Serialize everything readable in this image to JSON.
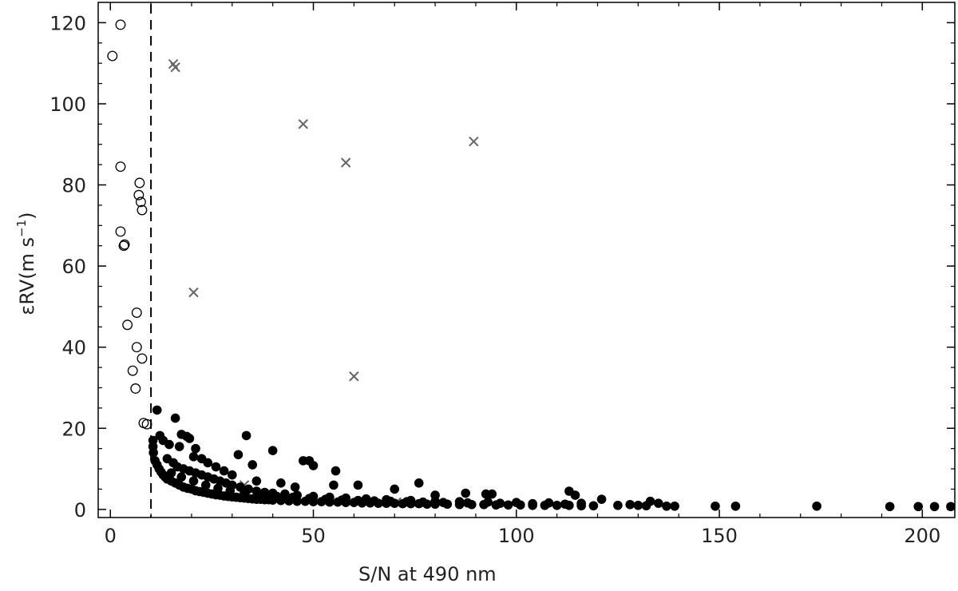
{
  "chart_data": {
    "type": "scatter",
    "title": "",
    "xlabel": "S/N at 490 nm",
    "ylabel": "εRV(m s⁻¹)",
    "ylabel_parts": {
      "base": "εRV(m s",
      "sup": "−1",
      "close": ")"
    },
    "xlim": [
      -3,
      208
    ],
    "ylim": [
      -2,
      125
    ],
    "xticks": [
      0,
      50,
      100,
      150,
      200
    ],
    "yticks": [
      0,
      20,
      40,
      60,
      80,
      100,
      120
    ],
    "xtick_labels": [
      "0",
      "50",
      "100",
      "150",
      "200"
    ],
    "ytick_labels": [
      "0",
      "20",
      "40",
      "60",
      "80",
      "100",
      "120"
    ],
    "grid": false,
    "vline": {
      "x": 10,
      "style": "dashed",
      "color": "#000000"
    },
    "series": [
      {
        "marker": "open-circle",
        "color": "#000000",
        "points": [
          [
            2.5,
            119.5
          ],
          [
            0.5,
            111.8
          ],
          [
            2.5,
            84.5
          ],
          [
            7.2,
            80.5
          ],
          [
            7.0,
            77.5
          ],
          [
            7.5,
            75.8
          ],
          [
            7.8,
            73.8
          ],
          [
            2.5,
            68.5
          ],
          [
            3.5,
            65.3
          ],
          [
            3.3,
            65.0
          ],
          [
            6.5,
            48.5
          ],
          [
            4.2,
            45.5
          ],
          [
            6.5,
            40.0
          ],
          [
            7.8,
            37.2
          ],
          [
            5.5,
            34.2
          ],
          [
            6.2,
            29.8
          ],
          [
            8.2,
            21.3
          ],
          [
            9.0,
            21.0
          ]
        ]
      },
      {
        "marker": "cross",
        "color": "#666666",
        "points": [
          [
            15.5,
            109.8
          ],
          [
            16.0,
            109.0
          ],
          [
            47.5,
            95.0
          ],
          [
            89.5,
            90.7
          ],
          [
            58.0,
            85.5
          ],
          [
            20.5,
            53.5
          ],
          [
            60.0,
            32.8
          ],
          [
            33.0,
            6.0
          ],
          [
            70.5,
            1.8
          ]
        ]
      },
      {
        "marker": "filled-circle",
        "color": "#000000",
        "points": [
          [
            11.5,
            24.5
          ],
          [
            16.0,
            22.5
          ],
          [
            10.5,
            17.0
          ],
          [
            10.5,
            15.5
          ],
          [
            10.6,
            14.0
          ],
          [
            12.2,
            18.2
          ],
          [
            13.0,
            17.0
          ],
          [
            14.5,
            16.0
          ],
          [
            17.5,
            18.5
          ],
          [
            18.8,
            18.0
          ],
          [
            19.5,
            17.5
          ],
          [
            17.0,
            15.5
          ],
          [
            21.0,
            15.0
          ],
          [
            20.5,
            13.0
          ],
          [
            22.5,
            12.5
          ],
          [
            24.0,
            11.5
          ],
          [
            26.0,
            10.5
          ],
          [
            28.0,
            9.5
          ],
          [
            30.0,
            8.5
          ],
          [
            31.5,
            13.5
          ],
          [
            33.5,
            18.2
          ],
          [
            35.0,
            11.0
          ],
          [
            40.0,
            14.5
          ],
          [
            47.5,
            12.0
          ],
          [
            49.0,
            12.0
          ],
          [
            50.0,
            10.8
          ],
          [
            55.5,
            9.5
          ],
          [
            61.0,
            6.0
          ],
          [
            36.0,
            7.0
          ],
          [
            42.0,
            6.5
          ],
          [
            45.5,
            5.5
          ],
          [
            55.0,
            6.0
          ],
          [
            76.0,
            6.5
          ],
          [
            87.5,
            4.0
          ],
          [
            92.5,
            3.8
          ],
          [
            94.0,
            3.8
          ],
          [
            113.0,
            4.5
          ],
          [
            114.5,
            3.5
          ],
          [
            70.0,
            5.0
          ],
          [
            80.0,
            3.5
          ],
          [
            11.0,
            12.0
          ],
          [
            11.5,
            11.0
          ],
          [
            12.0,
            10.0
          ],
          [
            12.5,
            9.2
          ],
          [
            13.0,
            8.5
          ],
          [
            13.5,
            8.0
          ],
          [
            14.0,
            7.5
          ],
          [
            15.0,
            7.0
          ],
          [
            16.0,
            6.5
          ],
          [
            17.0,
            6.0
          ],
          [
            18.0,
            5.5
          ],
          [
            19.0,
            5.2
          ],
          [
            20.0,
            5.0
          ],
          [
            21.0,
            4.6
          ],
          [
            22.0,
            4.4
          ],
          [
            23.0,
            4.2
          ],
          [
            24.0,
            4.0
          ],
          [
            25.0,
            3.8
          ],
          [
            26.0,
            3.6
          ],
          [
            27.0,
            3.5
          ],
          [
            28.0,
            3.3
          ],
          [
            29.0,
            3.2
          ],
          [
            30.0,
            3.1
          ],
          [
            31.0,
            3.0
          ],
          [
            32.0,
            2.9
          ],
          [
            33.0,
            2.8
          ],
          [
            34.0,
            2.7
          ],
          [
            35.0,
            2.6
          ],
          [
            36.0,
            2.5
          ],
          [
            37.0,
            2.5
          ],
          [
            38.0,
            2.4
          ],
          [
            39.0,
            2.4
          ],
          [
            40.0,
            2.3
          ],
          [
            42.0,
            2.2
          ],
          [
            44.0,
            2.1
          ],
          [
            46.0,
            2.0
          ],
          [
            48.0,
            2.0
          ],
          [
            50.0,
            1.9
          ],
          [
            52.0,
            1.9
          ],
          [
            54.0,
            1.8
          ],
          [
            56.0,
            1.8
          ],
          [
            58.0,
            1.7
          ],
          [
            60.0,
            1.7
          ],
          [
            62.0,
            1.6
          ],
          [
            64.0,
            1.6
          ],
          [
            66.0,
            1.5
          ],
          [
            68.0,
            1.5
          ],
          [
            70.0,
            1.5
          ],
          [
            72.0,
            1.4
          ],
          [
            74.0,
            1.4
          ],
          [
            76.0,
            1.4
          ],
          [
            78.0,
            1.3
          ],
          [
            80.0,
            1.3
          ],
          [
            83.0,
            1.3
          ],
          [
            86.0,
            1.2
          ],
          [
            89.0,
            1.2
          ],
          [
            92.0,
            1.2
          ],
          [
            95.0,
            1.1
          ],
          [
            98.0,
            1.1
          ],
          [
            101.0,
            1.1
          ],
          [
            104.0,
            1.0
          ],
          [
            107.0,
            1.0
          ],
          [
            110.0,
            1.0
          ],
          [
            113.0,
            1.0
          ],
          [
            116.0,
            0.9
          ],
          [
            119.0,
            0.9
          ],
          [
            121.0,
            2.5
          ],
          [
            125.0,
            1.0
          ],
          [
            128.0,
            1.2
          ],
          [
            130.0,
            1.0
          ],
          [
            132.0,
            0.9
          ],
          [
            133.0,
            2.0
          ],
          [
            135.0,
            1.5
          ],
          [
            137.0,
            0.8
          ],
          [
            139.0,
            0.8
          ],
          [
            149.0,
            0.8
          ],
          [
            154.0,
            0.8
          ],
          [
            174.0,
            0.8
          ],
          [
            192.0,
            0.7
          ],
          [
            199.0,
            0.7
          ],
          [
            203.0,
            0.7
          ],
          [
            207.0,
            0.7
          ],
          [
            14.0,
            12.5
          ],
          [
            15.5,
            11.5
          ],
          [
            16.5,
            10.5
          ],
          [
            18.0,
            10.0
          ],
          [
            19.5,
            9.5
          ],
          [
            21.0,
            9.0
          ],
          [
            22.5,
            8.5
          ],
          [
            24.0,
            8.0
          ],
          [
            25.5,
            7.5
          ],
          [
            27.0,
            7.0
          ],
          [
            28.5,
            6.5
          ],
          [
            30.0,
            6.0
          ],
          [
            32.0,
            5.5
          ],
          [
            34.0,
            5.0
          ],
          [
            36.0,
            4.5
          ],
          [
            38.0,
            4.2
          ],
          [
            40.0,
            4.0
          ],
          [
            43.0,
            3.8
          ],
          [
            46.0,
            3.5
          ],
          [
            50.0,
            3.2
          ],
          [
            54.0,
            3.0
          ],
          [
            58.0,
            2.8
          ],
          [
            63.0,
            2.6
          ],
          [
            68.0,
            2.4
          ],
          [
            74.0,
            2.2
          ],
          [
            80.0,
            2.0
          ],
          [
            86.0,
            1.9
          ],
          [
            93.0,
            1.8
          ],
          [
            100.0,
            1.7
          ],
          [
            108.0,
            1.6
          ],
          [
            116.0,
            1.5
          ],
          [
            15.0,
            9.0
          ],
          [
            17.5,
            8.0
          ],
          [
            20.5,
            7.0
          ],
          [
            23.5,
            6.0
          ],
          [
            26.5,
            5.2
          ],
          [
            29.5,
            4.6
          ],
          [
            33.0,
            4.0
          ],
          [
            37.0,
            3.5
          ],
          [
            41.0,
            3.2
          ],
          [
            45.0,
            3.0
          ],
          [
            49.0,
            2.7
          ],
          [
            53.0,
            2.5
          ],
          [
            57.0,
            2.3
          ],
          [
            61.0,
            2.2
          ],
          [
            65.0,
            2.1
          ],
          [
            69.0,
            2.0
          ],
          [
            73.0,
            1.9
          ],
          [
            77.0,
            1.8
          ],
          [
            82.0,
            1.7
          ],
          [
            88.0,
            1.6
          ],
          [
            96.0,
            1.5
          ],
          [
            104.0,
            1.4
          ],
          [
            112.0,
            1.3
          ]
        ]
      }
    ]
  }
}
